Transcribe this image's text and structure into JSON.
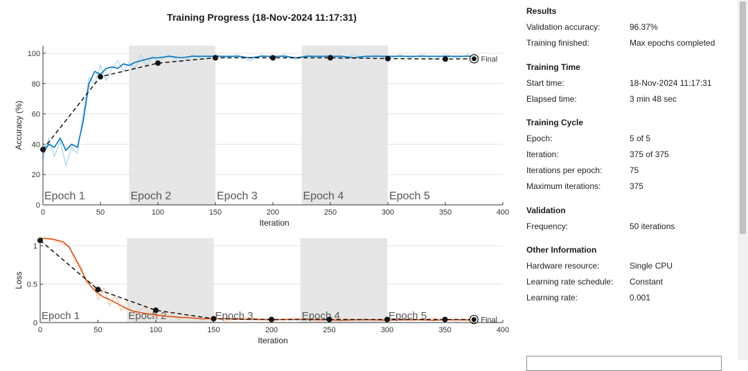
{
  "window": {
    "title": "Training Progress (18-Nov-2024 11:17:31)"
  },
  "panel": {
    "sections": [
      {
        "title": "Results",
        "rows": [
          {
            "label": "Validation accuracy:",
            "value": "96.37%"
          },
          {
            "label": "Training finished:",
            "value": "Max epochs completed"
          }
        ]
      },
      {
        "title": "Training Time",
        "rows": [
          {
            "label": "Start time:",
            "value": "18-Nov-2024 11:17:31"
          },
          {
            "label": "Elapsed time:",
            "value": "3 min 48 sec"
          }
        ]
      },
      {
        "title": "Training Cycle",
        "rows": [
          {
            "label": "Epoch:",
            "value": "5 of 5"
          },
          {
            "label": "Iteration:",
            "value": "375 of 375"
          },
          {
            "label": "Iterations per epoch:",
            "value": "75"
          },
          {
            "label": "Maximum iterations:",
            "value": "375"
          }
        ]
      },
      {
        "title": "Validation",
        "rows": [
          {
            "label": "Frequency:",
            "value": "50 iterations"
          }
        ]
      },
      {
        "title": "Other Information",
        "rows": [
          {
            "label": "Hardware resource:",
            "value": "Single CPU"
          },
          {
            "label": "Learning rate schedule:",
            "value": "Constant"
          },
          {
            "label": "Learning rate:",
            "value": "0.001"
          }
        ]
      }
    ]
  },
  "chart_data": [
    {
      "type": "line",
      "title": "",
      "xlabel": "Iteration",
      "ylabel": "Accuracy (%)",
      "xlim": [
        0,
        400
      ],
      "ylim": [
        0,
        105
      ],
      "xticks": [
        0,
        50,
        100,
        150,
        200,
        250,
        300,
        350,
        400
      ],
      "yticks": [
        0,
        20,
        40,
        60,
        80,
        100
      ],
      "epochs": [
        "Epoch 1",
        "Epoch 2",
        "Epoch 3",
        "Epoch 4",
        "Epoch 5"
      ],
      "final_label": "Final",
      "series": [
        {
          "role": "training-smoothed",
          "color": "#0072bd",
          "x": [
            0,
            5,
            10,
            15,
            20,
            25,
            30,
            35,
            40,
            45,
            50,
            55,
            60,
            65,
            70,
            75,
            80,
            85,
            90,
            95,
            100,
            110,
            120,
            130,
            140,
            150,
            160,
            170,
            180,
            190,
            200,
            210,
            220,
            230,
            240,
            250,
            260,
            270,
            280,
            290,
            300,
            310,
            320,
            330,
            340,
            350,
            360,
            370,
            375
          ],
          "y": [
            34,
            40,
            38,
            44,
            36,
            40,
            38,
            55,
            80,
            88,
            86,
            90,
            91,
            90,
            93,
            92,
            94,
            95,
            96,
            97,
            97,
            98,
            97,
            98,
            98,
            98,
            98,
            98,
            97,
            98,
            98,
            98,
            97,
            98,
            98,
            98,
            98,
            97,
            98,
            98,
            98,
            98,
            98,
            98,
            98,
            98,
            98,
            98,
            98
          ]
        },
        {
          "role": "training-raw",
          "color": "#a6d3f2",
          "x": [
            0,
            5,
            10,
            15,
            20,
            25,
            30,
            35,
            40,
            45,
            50,
            55,
            60,
            65,
            70,
            75,
            80,
            85,
            90,
            95,
            100,
            110,
            120,
            130,
            140,
            150,
            160,
            170,
            180,
            190,
            200,
            210,
            220,
            230,
            240,
            250,
            260,
            270,
            280,
            290,
            300,
            310,
            320,
            330,
            340,
            350,
            360,
            370,
            375
          ],
          "y": [
            30,
            44,
            32,
            42,
            26,
            38,
            34,
            60,
            84,
            80,
            92,
            82,
            90,
            95,
            88,
            94,
            90,
            99,
            92,
            98,
            95,
            99,
            94,
            99,
            96,
            99,
            97,
            99,
            95,
            99,
            97,
            99,
            96,
            99,
            97,
            99,
            96,
            99,
            97,
            99,
            96,
            99,
            97,
            99,
            96,
            99,
            97,
            99,
            97
          ]
        },
        {
          "role": "validation",
          "color": "#000000",
          "x": [
            0,
            50,
            100,
            150,
            200,
            250,
            300,
            350,
            375
          ],
          "y": [
            36.5,
            84.5,
            93.5,
            97,
            97,
            97,
            96.5,
            96.2,
            96.37
          ]
        }
      ]
    },
    {
      "type": "line",
      "title": "",
      "xlabel": "Iteration",
      "ylabel": "Loss",
      "xlim": [
        0,
        400
      ],
      "ylim": [
        0,
        1.1
      ],
      "xticks": [
        0,
        50,
        100,
        150,
        200,
        250,
        300,
        350,
        400
      ],
      "yticks": [
        0,
        0.5,
        1
      ],
      "epochs": [
        "Epoch 1",
        "Epoch 2",
        "Epoch 3",
        "Epoch 4",
        "Epoch 5"
      ],
      "final_label": "Final",
      "series": [
        {
          "role": "training-smoothed",
          "color": "#d95319",
          "x": [
            0,
            10,
            20,
            25,
            30,
            35,
            40,
            45,
            50,
            55,
            60,
            65,
            70,
            75,
            80,
            90,
            100,
            110,
            120,
            130,
            140,
            150,
            160,
            180,
            200,
            220,
            240,
            260,
            280,
            300,
            320,
            340,
            360,
            375
          ],
          "y": [
            1.1,
            1.09,
            1.05,
            0.98,
            0.85,
            0.7,
            0.55,
            0.45,
            0.38,
            0.33,
            0.3,
            0.26,
            0.22,
            0.18,
            0.15,
            0.12,
            0.1,
            0.08,
            0.07,
            0.06,
            0.05,
            0.05,
            0.05,
            0.04,
            0.04,
            0.04,
            0.04,
            0.03,
            0.04,
            0.03,
            0.04,
            0.03,
            0.04,
            0.03
          ]
        },
        {
          "role": "training-raw",
          "color": "#f7c6a6",
          "x": [
            0,
            10,
            20,
            25,
            30,
            35,
            40,
            45,
            50,
            55,
            60,
            65,
            70,
            75,
            80,
            90,
            100,
            110,
            120,
            130,
            140,
            150,
            160,
            180,
            200,
            220,
            240,
            260,
            280,
            300,
            320,
            340,
            360,
            375
          ],
          "y": [
            1.1,
            1.08,
            1.02,
            1.0,
            0.8,
            0.75,
            0.5,
            0.52,
            0.3,
            0.45,
            0.22,
            0.35,
            0.15,
            0.28,
            0.1,
            0.2,
            0.06,
            0.14,
            0.04,
            0.1,
            0.03,
            0.08,
            0.02,
            0.07,
            0.02,
            0.06,
            0.02,
            0.06,
            0.02,
            0.05,
            0.02,
            0.06,
            0.02,
            0.04
          ]
        },
        {
          "role": "validation",
          "color": "#000000",
          "x": [
            0,
            50,
            100,
            150,
            200,
            250,
            300,
            350,
            375
          ],
          "y": [
            1.07,
            0.43,
            0.16,
            0.05,
            0.04,
            0.04,
            0.04,
            0.04,
            0.04
          ]
        }
      ]
    }
  ]
}
